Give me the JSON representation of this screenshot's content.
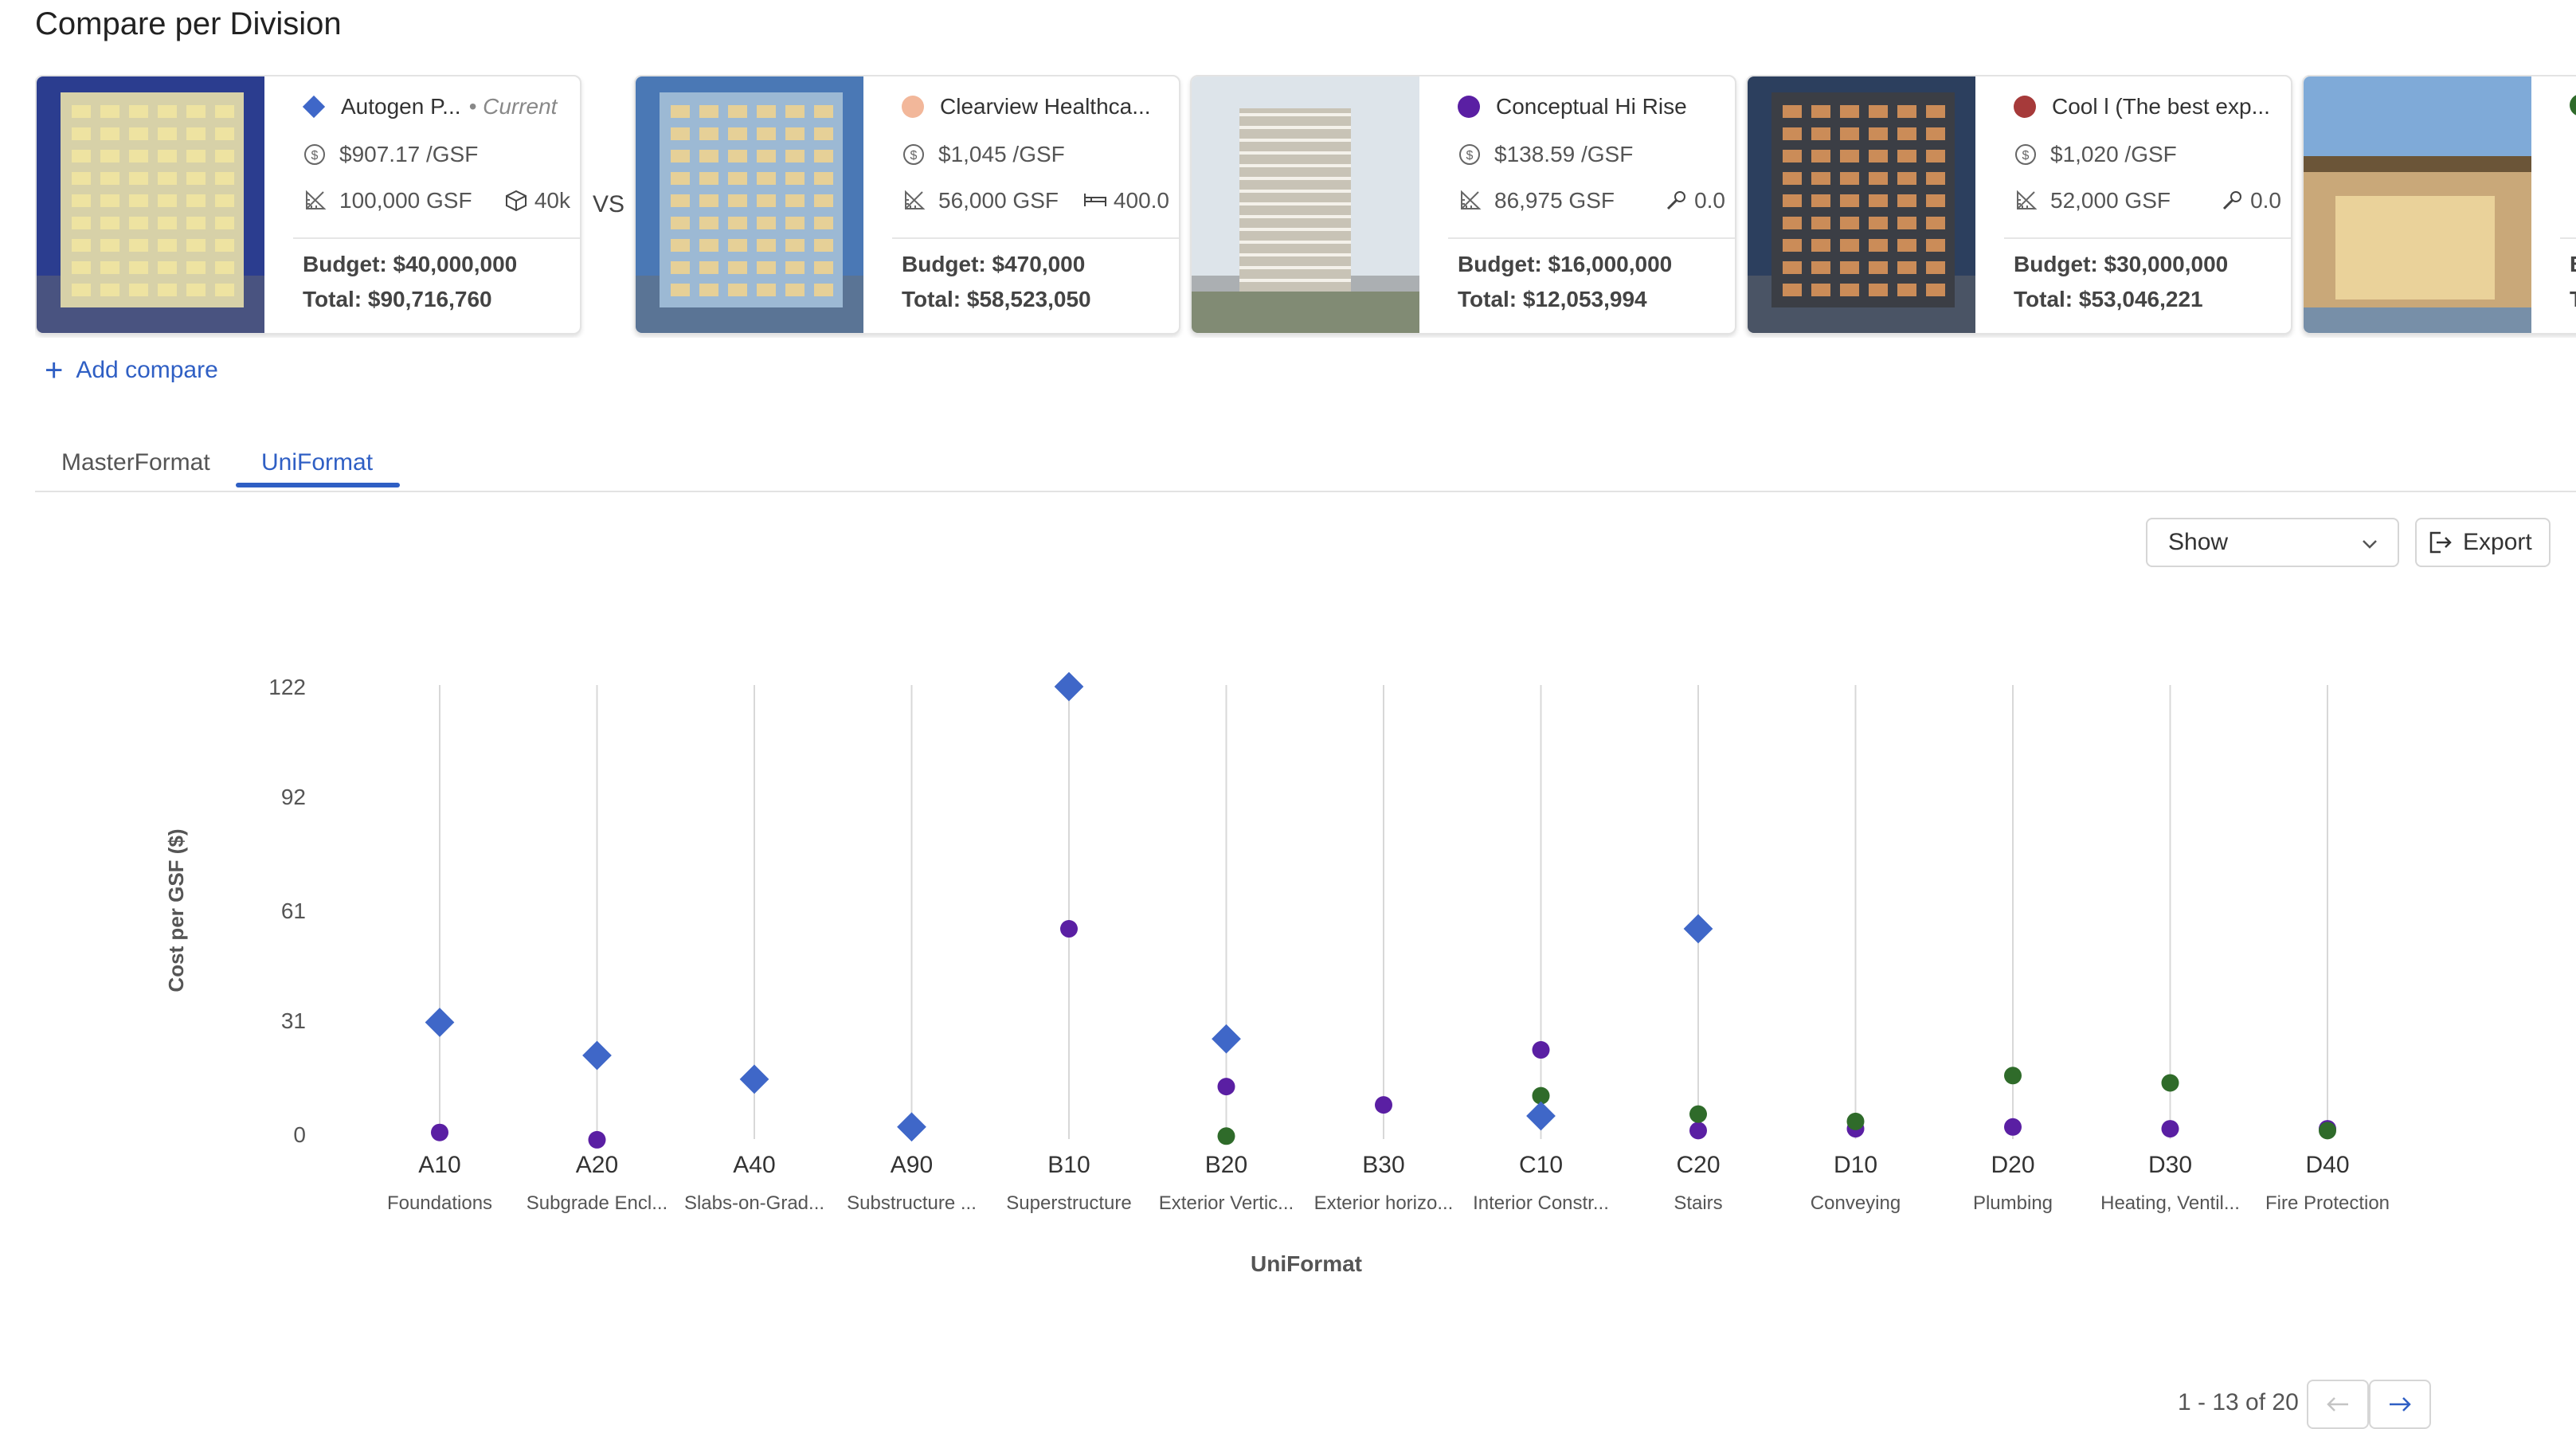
{
  "page": {
    "title": "Compare per Division"
  },
  "projects": [
    {
      "name": "Autogen P...",
      "tag": "Current",
      "marker": "diamond",
      "color": "#3f67c8",
      "cost_per_gsf": "$907.17 /GSF",
      "area": "100,000 GSF",
      "extra_icon": "cube-icon",
      "extra_value": "40k",
      "budget": "Budget: $40,000,000",
      "total": "Total: $90,716,760",
      "image": {
        "sky": "#2b3d8f",
        "building": "#d7d1a8",
        "accent": "#f2e6a0"
      }
    },
    {
      "name": "Clearview Healthca...",
      "marker": "dot",
      "color": "#f2b79a",
      "cost_per_gsf": "$1,045 /GSF",
      "area": "56,000 GSF",
      "extra_icon": "bed-icon",
      "extra_value": "400.0",
      "budget": "Budget: $470,000",
      "total": "Total: $58,523,050",
      "image": {
        "sky": "#4a78b5",
        "building": "#9cb9d4",
        "accent": "#f3d38c"
      }
    },
    {
      "name": "Conceptual Hi Rise",
      "marker": "dot",
      "color": "#5a1fa3",
      "cost_per_gsf": "$138.59 /GSF",
      "area": "86,975 GSF",
      "extra_icon": "wrench-icon",
      "extra_value": "0.0",
      "budget": "Budget: $16,000,000",
      "total": "Total: $12,053,994",
      "image": {
        "sky": "#dde4ea",
        "building": "#c8c3b6",
        "accent": "#6f7c5a"
      }
    },
    {
      "name": "Cool l (The best exp...",
      "marker": "dot",
      "color": "#a63a3a",
      "cost_per_gsf": "$1,020 /GSF",
      "area": "52,000 GSF",
      "extra_icon": "wrench-icon",
      "extra_value": "0.0",
      "budget": "Budget: $30,000,000",
      "total": "Total: $53,046,221",
      "image": {
        "sky": "#2c3f5e",
        "building": "#3b3e45",
        "accent": "#e59a5c"
      }
    },
    {
      "name": "",
      "marker": "dot",
      "color": "#2f6b2a",
      "cost_per_gsf": "",
      "area": "",
      "extra_icon": "",
      "extra_value": "",
      "budget": "B",
      "total": "T",
      "image": {
        "sky": "#7faad8",
        "building": "#c9a879",
        "accent": "#f0d9a0"
      }
    }
  ],
  "compare": {
    "vs_label": "VS",
    "add_label": "Add compare"
  },
  "tabs": [
    {
      "label": "MasterFormat"
    },
    {
      "label": "UniFormat",
      "active": true
    }
  ],
  "toolbar": {
    "show_label": "Show",
    "export_label": "Export"
  },
  "pagination": {
    "range_label": "1 - 13 of 20"
  },
  "chart_data": {
    "type": "scatter",
    "xlabel": "UniFormat",
    "ylabel": "Cost per GSF ($)",
    "ylim": [
      0,
      122
    ],
    "yticks": [
      0,
      31,
      61,
      92,
      122
    ],
    "grid": "vertical",
    "categories": [
      {
        "code": "A10",
        "name": "Foundations"
      },
      {
        "code": "A20",
        "name": "Subgrade Encl..."
      },
      {
        "code": "A40",
        "name": "Slabs-on-Grad..."
      },
      {
        "code": "A90",
        "name": "Substructure ..."
      },
      {
        "code": "B10",
        "name": "Superstructure"
      },
      {
        "code": "B20",
        "name": "Exterior Vertic..."
      },
      {
        "code": "B30",
        "name": "Exterior horizo..."
      },
      {
        "code": "C10",
        "name": "Interior Constr..."
      },
      {
        "code": "C20",
        "name": "Stairs"
      },
      {
        "code": "D10",
        "name": "Conveying"
      },
      {
        "code": "D20",
        "name": "Plumbing"
      },
      {
        "code": "D30",
        "name": "Heating, Ventil..."
      },
      {
        "code": "D40",
        "name": "Fire Protection"
      }
    ],
    "series": [
      {
        "marker": "diamond",
        "color": "#3f67c8",
        "values": [
          30.5,
          21.5,
          15,
          2,
          122,
          26,
          null,
          5,
          56,
          null,
          null,
          null,
          null
        ]
      },
      {
        "marker": "dot",
        "color": "#5a1fa3",
        "values": [
          0.5,
          -1.5,
          null,
          null,
          56,
          13,
          8,
          23,
          1,
          1.5,
          2,
          1.5,
          1.5
        ]
      },
      {
        "marker": "dot",
        "color": "#2f6b2a",
        "values": [
          null,
          null,
          null,
          null,
          null,
          -0.5,
          null,
          10.5,
          5.5,
          3.5,
          16,
          14,
          1
        ]
      }
    ]
  }
}
